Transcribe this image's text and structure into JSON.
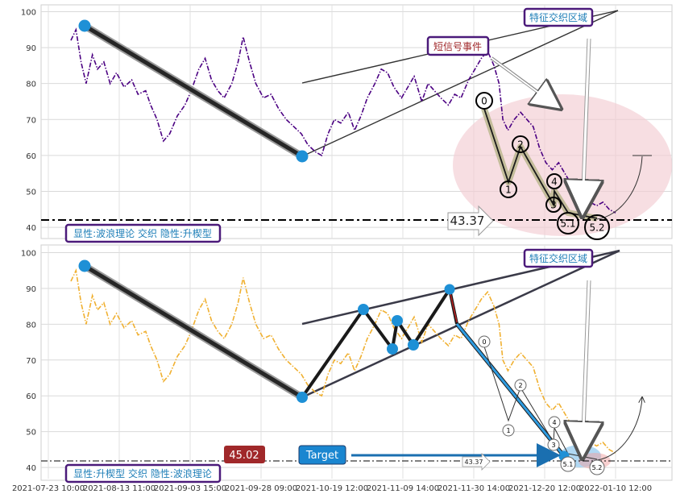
{
  "chart_data": [
    {
      "type": "line",
      "panel": "top",
      "ylim": [
        38,
        101
      ],
      "yticks": [
        40,
        50,
        60,
        70,
        80,
        90,
        100
      ],
      "grid": true,
      "series": [
        {
          "style": "dash-dot",
          "color": "#4b0082",
          "points": [
            [
              0,
              92
            ],
            [
              0.4,
              95
            ],
            [
              0.8,
              86
            ],
            [
              1.2,
              80
            ],
            [
              1.7,
              88
            ],
            [
              2.1,
              84
            ],
            [
              2.6,
              86
            ],
            [
              3.1,
              80
            ],
            [
              3.6,
              83
            ],
            [
              4.2,
              79
            ],
            [
              4.8,
              81
            ],
            [
              5.3,
              77
            ],
            [
              5.9,
              78
            ],
            [
              6.3,
              74
            ],
            [
              6.8,
              70
            ],
            [
              7.3,
              64
            ],
            [
              7.8,
              66
            ],
            [
              8.4,
              71
            ],
            [
              9.0,
              74
            ],
            [
              9.5,
              78
            ],
            [
              10.1,
              84
            ],
            [
              10.6,
              87
            ],
            [
              11.1,
              81
            ],
            [
              11.6,
              78
            ],
            [
              12.1,
              76
            ],
            [
              12.7,
              80
            ],
            [
              13.2,
              86
            ],
            [
              13.6,
              93
            ],
            [
              14.1,
              86
            ],
            [
              14.6,
              80
            ],
            [
              15.2,
              76
            ],
            [
              15.8,
              77
            ],
            [
              16.4,
              73
            ],
            [
              17.0,
              70
            ],
            [
              17.6,
              68
            ],
            [
              18.2,
              66
            ],
            [
              18.7,
              63
            ],
            [
              19.3,
              61
            ],
            [
              19.8,
              60
            ],
            [
              20.3,
              66
            ],
            [
              20.8,
              70
            ],
            [
              21.3,
              69
            ],
            [
              21.9,
              72
            ],
            [
              22.4,
              67
            ],
            [
              22.9,
              71
            ],
            [
              23.4,
              76
            ],
            [
              24.0,
              80
            ],
            [
              24.5,
              84
            ],
            [
              25.0,
              83
            ],
            [
              25.5,
              79
            ],
            [
              26.1,
              76
            ],
            [
              26.6,
              79
            ],
            [
              27.1,
              82
            ],
            [
              27.7,
              75
            ],
            [
              28.2,
              80
            ],
            [
              28.7,
              78
            ],
            [
              29.2,
              76
            ],
            [
              29.8,
              74
            ],
            [
              30.3,
              77
            ],
            [
              30.8,
              76
            ],
            [
              31.4,
              81
            ],
            [
              31.9,
              84
            ],
            [
              32.4,
              87
            ],
            [
              32.9,
              89
            ],
            [
              33.4,
              85
            ],
            [
              33.8,
              80
            ],
            [
              34.1,
              70
            ],
            [
              34.5,
              67
            ],
            [
              35.0,
              70
            ],
            [
              35.5,
              72
            ],
            [
              36.0,
              70
            ],
            [
              36.5,
              68
            ],
            [
              37.0,
              62
            ],
            [
              37.5,
              58
            ],
            [
              38.0,
              56
            ],
            [
              38.5,
              58
            ],
            [
              39.0,
              55
            ],
            [
              39.5,
              52
            ],
            [
              40.0,
              50
            ],
            [
              40.5,
              48
            ],
            [
              41.0,
              47
            ],
            [
              41.5,
              46
            ],
            [
              42.0,
              47
            ],
            [
              42.5,
              45
            ],
            [
              43.0,
              44
            ]
          ]
        }
      ],
      "overlays": {
        "trend_line": [
          [
            0.5,
            95.3
          ],
          [
            18.7,
            60.5
          ]
        ],
        "channel_upper": [
          [
            18.5,
            80
          ],
          [
            41.5,
            99.5
          ]
        ],
        "channel_lower": [
          [
            18.5,
            60.5
          ],
          [
            41.5,
            92.5
          ]
        ],
        "wave_points": [
          {
            "label": "0",
            "x": 34.6,
            "y": 72.5
          },
          {
            "label": "1",
            "x": 35.9,
            "y": 53
          },
          {
            "label": "2",
            "x": 36.6,
            "y": 64
          },
          {
            "label": "3",
            "x": 38.8,
            "y": 45.8
          },
          {
            "label": "4",
            "x": 39.0,
            "y": 49.5
          },
          {
            "label": "5.1",
            "x": 40.0,
            "y": 45.8
          },
          {
            "label": "5.2",
            "x": 41.0,
            "y": 43.8
          }
        ]
      }
    },
    {
      "type": "line",
      "panel": "bottom",
      "ylim": [
        38,
        101
      ],
      "yticks": [
        40,
        50,
        60,
        70,
        80,
        90,
        100
      ],
      "grid": true,
      "series": [
        {
          "style": "dash-dot",
          "color": "#f0b030",
          "points": "same as top panel"
        }
      ],
      "overlays": {
        "wave_nodes": [
          [
            0.5,
            95.3
          ],
          [
            18.7,
            60.5
          ],
          [
            22.0,
            83.8
          ],
          [
            23.8,
            73.3
          ],
          [
            24.3,
            80.7
          ],
          [
            25.2,
            74.3
          ],
          [
            27.2,
            89
          ]
        ],
        "wave_points": [
          "0",
          "1",
          "2",
          "3",
          "4",
          "5.1",
          "5.2"
        ]
      }
    }
  ],
  "xaxis": {
    "ticks": [
      "2021-07-23 10:00",
      "2021-08-13 11:00",
      "2021-09-03 15:00",
      "2021-09-28 09:00",
      "2021-10-19 12:00",
      "2021-11-09 14:00",
      "2021-11-30 14:00",
      "2021-12-20 12:00",
      "2022-01-10 12:00"
    ]
  },
  "annotations": {
    "top_region_label": "特征交织区域",
    "bottom_region_label": "特征交织区域",
    "short_signal_label": "短信号事件",
    "top_level_value": "43.37",
    "top_info_box": "显性:波浪理论 交织 隐性:升楔型",
    "bottom_info_box": "显性:升楔型 交织 隐性:波浪理论",
    "bottom_price_badge": "45.02",
    "bottom_target_label": "Target",
    "bottom_level_value": "43.37"
  },
  "colors": {
    "top_series": "#4b0082",
    "bottom_series": "#f0b030",
    "node_blue": "#1e90d6",
    "region_pink": "#f7d4d8",
    "price_badge": "#a0282a",
    "target_badge": "#1a86d0"
  }
}
